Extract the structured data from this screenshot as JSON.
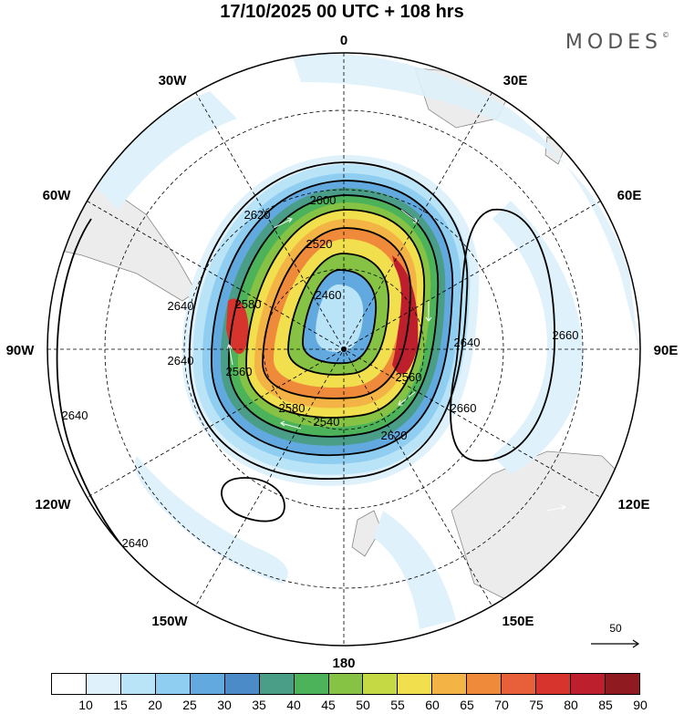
{
  "header": {
    "title": "17/10/2025  00 UTC  + 108 hrs",
    "brand": "MODES",
    "brand_mark": "©"
  },
  "map": {
    "projection": "south-polar-stereographic",
    "longitude_labels": [
      "0",
      "30E",
      "60E",
      "90E",
      "120E",
      "150E",
      "180",
      "150W",
      "120W",
      "90W",
      "60W",
      "30W"
    ],
    "contour_labels": [
      "2460",
      "2520",
      "2540",
      "2560",
      "2580",
      "2600",
      "2620",
      "2620",
      "2640",
      "2640",
      "2640",
      "2640",
      "2640",
      "2660",
      "2660",
      "2580",
      "2560"
    ],
    "wind_scale": {
      "label": "50"
    }
  },
  "legend": {
    "ticks": [
      "10",
      "15",
      "20",
      "25",
      "30",
      "35",
      "40",
      "45",
      "50",
      "55",
      "60",
      "65",
      "70",
      "75",
      "80",
      "85",
      "90"
    ],
    "colors": [
      "#ffffff",
      "#dff1fb",
      "#b9e3f7",
      "#8fcdf1",
      "#62a9df",
      "#4a8bc8",
      "#4a9e88",
      "#4db35a",
      "#86c244",
      "#c4d944",
      "#f2df4d",
      "#f4b345",
      "#ef8a3a",
      "#e8603a",
      "#d8342e",
      "#bd1f2d",
      "#8f1a1f"
    ]
  }
}
